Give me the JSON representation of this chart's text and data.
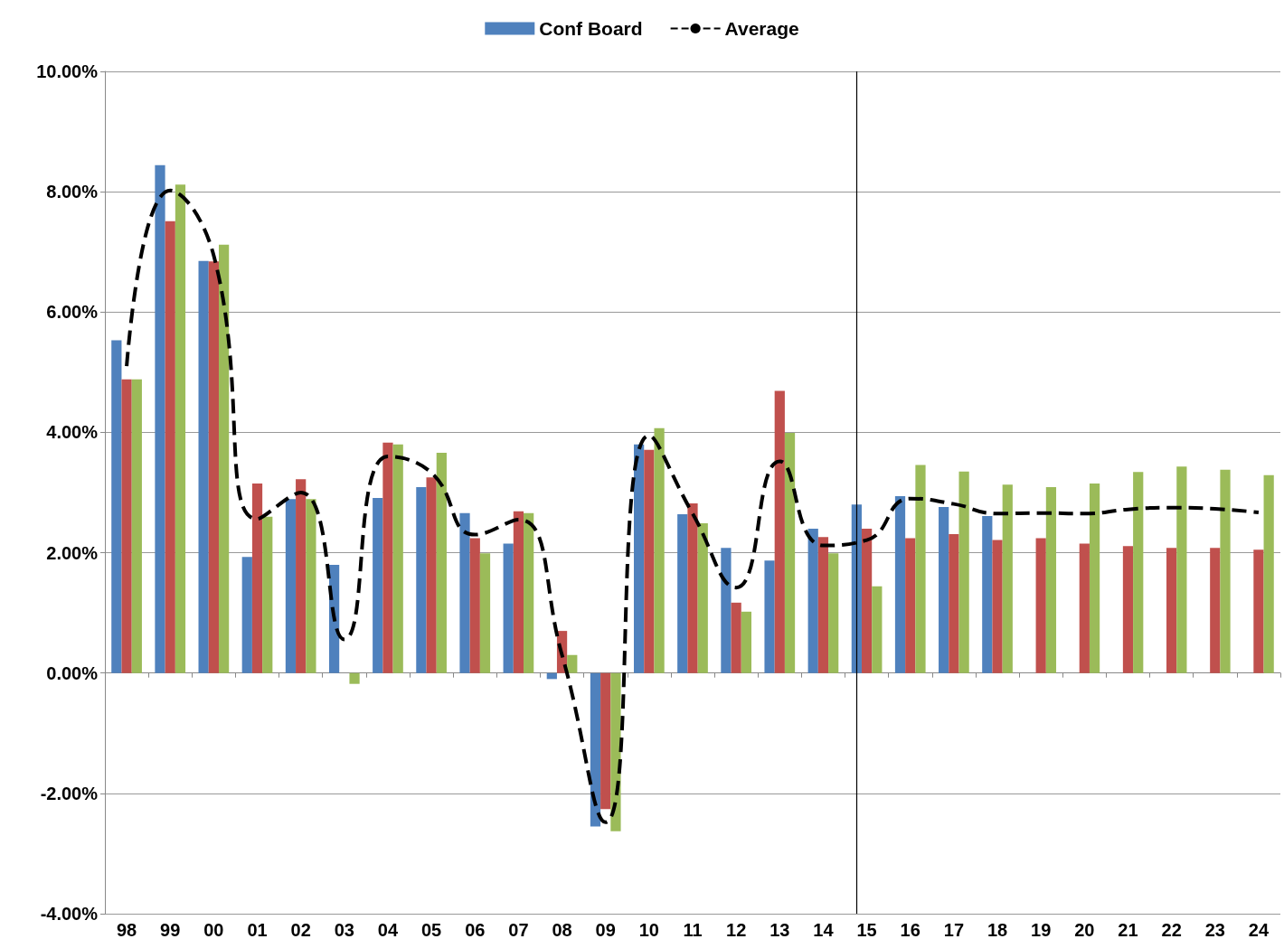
{
  "chart_data": {
    "type": "bar",
    "categories": [
      "98",
      "99",
      "00",
      "01",
      "02",
      "03",
      "04",
      "05",
      "06",
      "07",
      "08",
      "09",
      "10",
      "11",
      "12",
      "13",
      "14",
      "15",
      "16",
      "17",
      "18",
      "19",
      "20",
      "21",
      "22",
      "23",
      "24"
    ],
    "series": [
      {
        "name": "Conf Board",
        "color": "#4f81bd",
        "values": [
          5.53,
          8.44,
          6.85,
          1.93,
          2.89,
          1.8,
          2.91,
          3.09,
          2.66,
          2.15,
          -0.1,
          -2.55,
          3.8,
          2.64,
          2.08,
          1.87,
          2.4,
          2.8,
          2.94,
          2.76,
          2.61,
          null,
          null,
          null,
          null,
          null,
          null
        ]
      },
      {
        "color": "#c0504d",
        "values": [
          4.88,
          7.51,
          6.84,
          3.15,
          3.22,
          null,
          3.83,
          3.25,
          2.24,
          2.69,
          0.7,
          -2.26,
          3.71,
          2.82,
          1.17,
          4.69,
          2.26,
          2.4,
          2.24,
          2.31,
          2.21,
          2.24,
          2.15,
          2.11,
          2.08,
          2.08,
          2.05
        ]
      },
      {
        "color": "#9bbb59",
        "values": [
          4.88,
          8.12,
          7.12,
          2.6,
          2.89,
          -0.18,
          3.8,
          3.66,
          1.99,
          2.66,
          0.3,
          -2.63,
          4.07,
          2.49,
          1.02,
          3.99,
          1.99,
          1.44,
          3.46,
          3.35,
          3.13,
          3.09,
          3.15,
          3.34,
          3.43,
          3.38,
          3.29
        ]
      },
      {
        "name": "Average",
        "type": "line",
        "color": "#000000",
        "line_style": "dashed",
        "marker": "none",
        "values": [
          5.1,
          8.02,
          6.94,
          2.56,
          3.0,
          0.56,
          3.6,
          3.33,
          2.3,
          2.55,
          0.3,
          -2.48,
          3.95,
          2.65,
          1.42,
          3.52,
          2.12,
          2.21,
          2.9,
          2.81,
          2.65,
          2.66,
          2.65,
          2.72,
          2.75,
          2.73,
          2.67
        ]
      }
    ],
    "ylim": [
      -4,
      10
    ],
    "yticks": [
      {
        "value": -4,
        "label": "-4.00%"
      },
      {
        "value": -2,
        "label": "-2.00%"
      },
      {
        "value": 0,
        "label": "0.00%"
      },
      {
        "value": 2,
        "label": "2.00%"
      },
      {
        "value": 4,
        "label": "4.00%"
      },
      {
        "value": 6,
        "label": "6.00%"
      },
      {
        "value": 8,
        "label": "8.00%"
      },
      {
        "value": 10,
        "label": "10.00%"
      }
    ],
    "ref_lines": [
      {
        "axis": "x",
        "value": "15",
        "color": "#000000"
      }
    ],
    "grid": "y",
    "legend": "top"
  }
}
